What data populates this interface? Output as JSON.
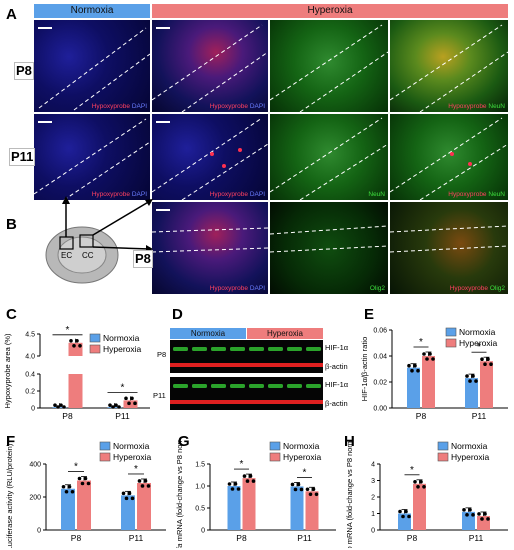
{
  "panels": {
    "A": "A",
    "B": "B",
    "C": "C",
    "D": "D",
    "E": "E",
    "F": "F",
    "G": "G",
    "H": "H"
  },
  "headers": {
    "normoxia": "Normoxia",
    "hyperoxia": "Hyperoxia"
  },
  "rows": {
    "p8": "P8",
    "p11": "P11",
    "p8b": "P8"
  },
  "captions": {
    "hypo_dapi_a": "Hypoxyprobe",
    "hypo_dapi_b": "DAPI",
    "neun": "NeuN",
    "hypo_neun_a": "Hypoxyprobe",
    "hypo_neun_b": "NeuN",
    "olig2": "Olig2",
    "hypo_olig_a": "Hypoxyprobe",
    "hypo_olig_b": "Olig2"
  },
  "brain": {
    "ec": "EC",
    "cc": "CC"
  },
  "colors": {
    "normoxia": "#5aa0e8",
    "hyperoxia": "#ee7d7d",
    "band_green": "#38d838",
    "band_red": "#e02020"
  },
  "legend": {
    "normoxia": "Normoxia",
    "hyperoxia": "Hyperoxia"
  },
  "western": {
    "header_norm": "Normoxia",
    "header_hyp": "Hyperoxia",
    "rows": [
      {
        "label": "P8",
        "bands": [
          "HIF-1α",
          "β-actin"
        ]
      },
      {
        "label": "P11",
        "bands": [
          "HIF-1α",
          "β-actin"
        ]
      }
    ]
  },
  "chart_data": [
    {
      "id": "C",
      "type": "bar",
      "ylabel": "Hypoxyprobe area (%)",
      "categories": [
        "P8",
        "P11"
      ],
      "yticks": [
        "0",
        "0.2",
        "0.4",
        "4.0",
        "4.5"
      ],
      "series": [
        {
          "name": "Normoxia",
          "values": [
            0.01,
            0.01
          ]
        },
        {
          "name": "Hyperoxia",
          "values": [
            4.3,
            0.09
          ]
        }
      ],
      "significance": [
        "*",
        "*"
      ]
    },
    {
      "id": "E",
      "type": "bar",
      "ylabel": "HIF-1α/β-actin ratio",
      "categories": [
        "P8",
        "P11"
      ],
      "ylim": [
        0,
        0.06
      ],
      "yticks": [
        "0.00",
        "0.02",
        "0.04",
        "0.06"
      ],
      "series": [
        {
          "name": "Normoxia",
          "values": [
            0.031,
            0.023
          ]
        },
        {
          "name": "Hyperoxia",
          "values": [
            0.04,
            0.036
          ]
        }
      ],
      "significance": [
        "*",
        "*"
      ]
    },
    {
      "id": "F",
      "type": "bar",
      "ylabel": "Luciferase activity (RLU/protein)",
      "categories": [
        "P8",
        "P11"
      ],
      "ylim": [
        0,
        400
      ],
      "yticks": [
        "0",
        "200",
        "400"
      ],
      "series": [
        {
          "name": "Normoxia",
          "values": [
            250,
            210
          ]
        },
        {
          "name": "Hyperoxia",
          "values": [
            300,
            285
          ]
        }
      ],
      "significance": [
        "*",
        "*"
      ]
    },
    {
      "id": "G",
      "type": "bar",
      "ylabel_italic": "Vegfa",
      "ylabel_rest": " mRNA (fold-change vs P8 norm.)",
      "categories": [
        "P8",
        "P11"
      ],
      "ylim": [
        0,
        1.5
      ],
      "yticks": [
        "0",
        "0.5",
        "1.0",
        "1.5"
      ],
      "series": [
        {
          "name": "Normoxia",
          "values": [
            1.0,
            0.99
          ]
        },
        {
          "name": "Hyperoxia",
          "values": [
            1.18,
            0.88
          ]
        }
      ],
      "significance": [
        "*",
        "*"
      ]
    },
    {
      "id": "H",
      "type": "bar",
      "ylabel_italic": "Epo",
      "ylabel_rest": " mRNA (fold-change vs P8 norm.)",
      "categories": [
        "P8",
        "P11"
      ],
      "ylim": [
        0,
        4
      ],
      "yticks": [
        "0",
        "1",
        "2",
        "3",
        "4"
      ],
      "series": [
        {
          "name": "Normoxia",
          "values": [
            1.0,
            1.1
          ]
        },
        {
          "name": "Hyperoxia",
          "values": [
            2.8,
            0.85
          ]
        }
      ],
      "significance": [
        "*",
        ""
      ]
    }
  ]
}
